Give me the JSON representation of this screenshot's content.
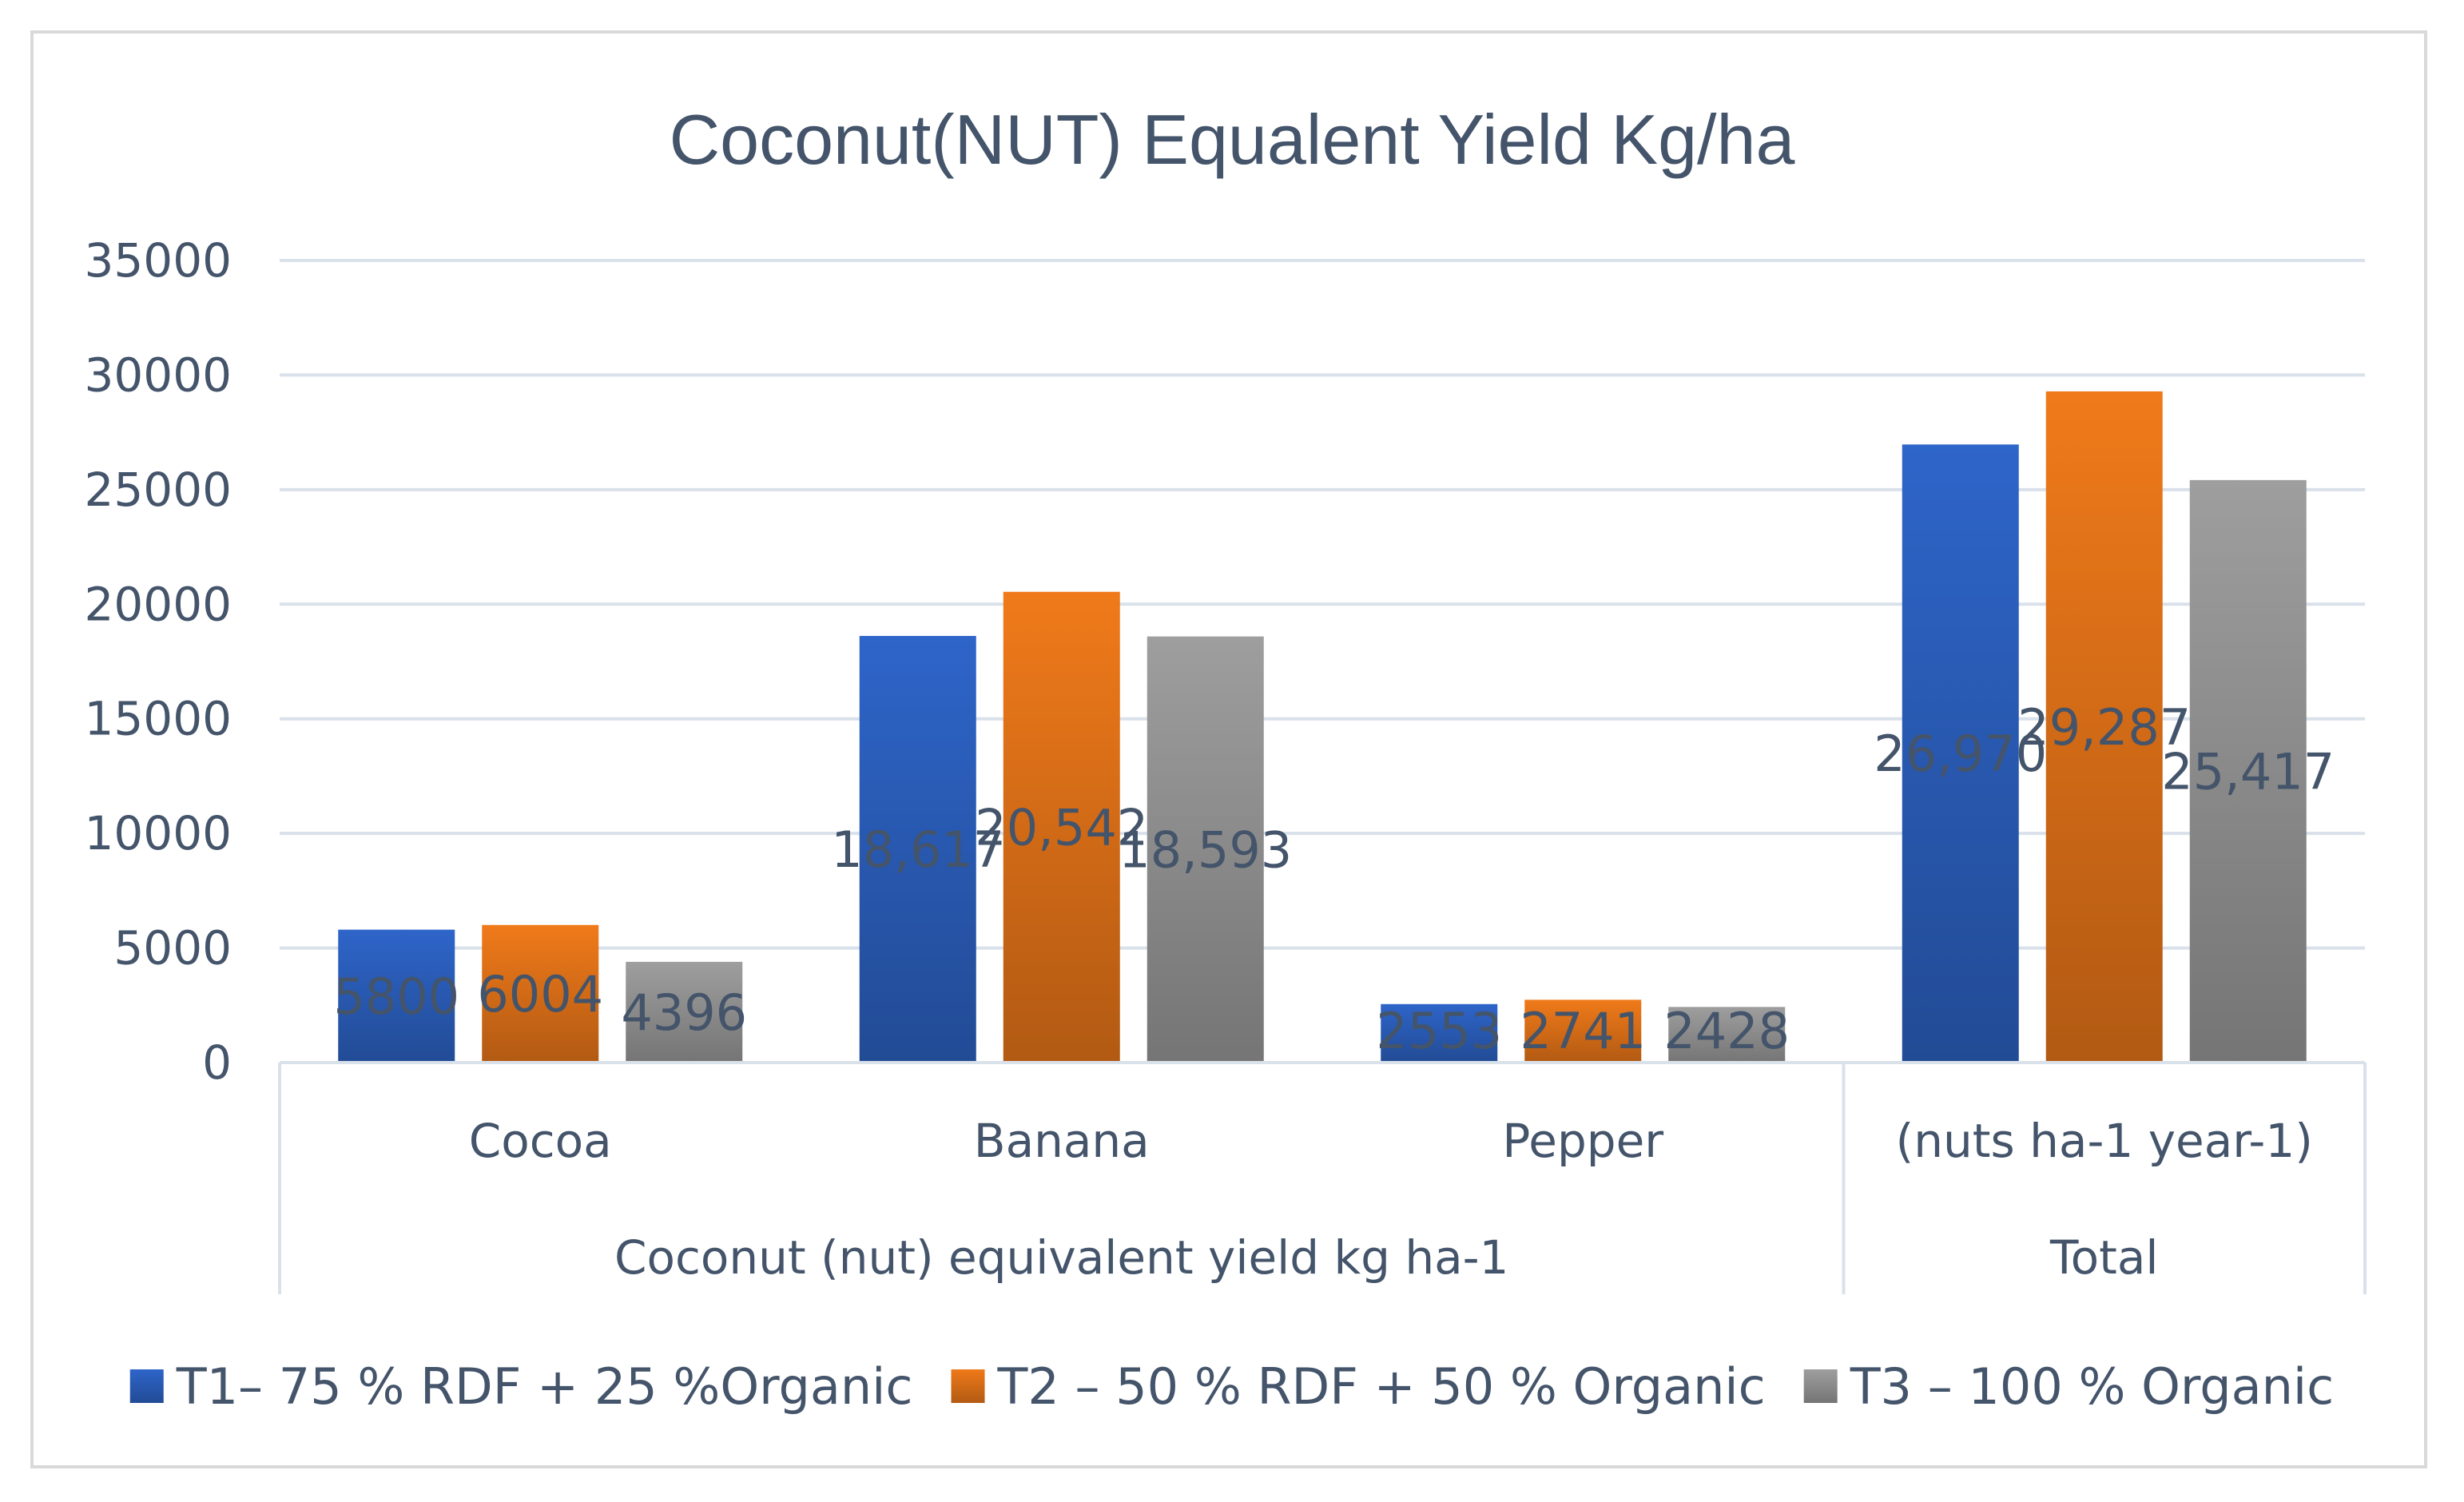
{
  "chart_data": {
    "type": "bar",
    "title": "Coconut(NUT) Equalent Yield Kg/ha",
    "xlabel": "",
    "ylabel": "",
    "ylim": [
      0,
      35000
    ],
    "yticks": [
      0,
      5000,
      10000,
      15000,
      20000,
      25000,
      30000,
      35000
    ],
    "grid": true,
    "legend": "bottom",
    "categories": [
      "Cocoa",
      "Banana",
      "Pepper",
      "(nuts ha-1 year-1)"
    ],
    "category_groups": [
      {
        "label": "Coconut (nut) equivalent yield kg ha-1",
        "span": 3
      },
      {
        "label": "Total",
        "span": 1
      }
    ],
    "series": [
      {
        "name": "T1– 75 % RDF + 25 %Organic",
        "color": "#2e65c9",
        "values": [
          5800,
          18617,
          2553,
          26970
        ],
        "labels": [
          "5800",
          "18,617",
          "2553",
          "26,970"
        ]
      },
      {
        "name": "T2 – 50 % RDF + 50 % Organic",
        "color": "#f07a1a",
        "values": [
          6004,
          20542,
          2741,
          29287
        ],
        "labels": [
          "6004",
          "20,542",
          "2741",
          "29,287"
        ]
      },
      {
        "name": "T3 – 100 % Organic",
        "color": "#9e9e9e",
        "values": [
          4396,
          18593,
          2428,
          25417
        ],
        "labels": [
          "4396",
          "18,593",
          "2428",
          "25,417"
        ]
      }
    ]
  }
}
